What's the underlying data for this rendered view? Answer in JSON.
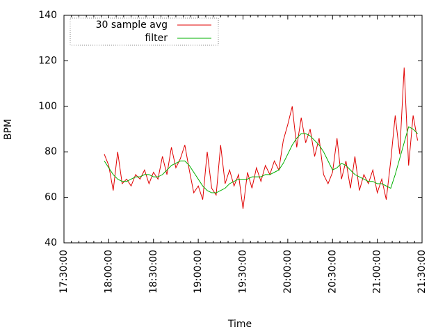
{
  "chart_data": {
    "type": "line",
    "xlabel": "Time",
    "ylabel": "BPM",
    "xlim": [
      "17:30:00",
      "21:30:00"
    ],
    "xticks": [
      "17:30:00",
      "18:00:00",
      "18:30:00",
      "19:00:00",
      "19:30:00",
      "20:00:00",
      "20:30:00",
      "21:00:00",
      "21:30:00"
    ],
    "ylim": [
      40,
      140
    ],
    "yticks": [
      40,
      60,
      80,
      100,
      120,
      140
    ],
    "legend": "top-left",
    "x": [
      "17:57:00",
      "18:00:00",
      "18:03:00",
      "18:06:00",
      "18:09:00",
      "18:12:00",
      "18:15:00",
      "18:18:00",
      "18:21:00",
      "18:24:00",
      "18:27:00",
      "18:30:00",
      "18:33:00",
      "18:36:00",
      "18:39:00",
      "18:42:00",
      "18:45:00",
      "18:48:00",
      "18:51:00",
      "18:54:00",
      "18:57:00",
      "19:00:00",
      "19:03:00",
      "19:06:00",
      "19:09:00",
      "19:12:00",
      "19:15:00",
      "19:18:00",
      "19:21:00",
      "19:24:00",
      "19:27:00",
      "19:30:00",
      "19:33:00",
      "19:36:00",
      "19:39:00",
      "19:42:00",
      "19:45:00",
      "19:48:00",
      "19:51:00",
      "19:54:00",
      "19:57:00",
      "20:00:00",
      "20:03:00",
      "20:06:00",
      "20:09:00",
      "20:12:00",
      "20:15:00",
      "20:18:00",
      "20:21:00",
      "20:24:00",
      "20:27:00",
      "20:30:00",
      "20:33:00",
      "20:36:00",
      "20:39:00",
      "20:42:00",
      "20:45:00",
      "20:48:00",
      "20:51:00",
      "20:54:00",
      "20:57:00",
      "21:00:00",
      "21:03:00",
      "21:06:00",
      "21:09:00",
      "21:12:00",
      "21:15:00",
      "21:18:00",
      "21:21:00",
      "21:24:00",
      "21:27:00"
    ],
    "series": [
      {
        "name": "30 sample avg",
        "color": "#e00000",
        "values": [
          79,
          74,
          63,
          80,
          66,
          68,
          65,
          70,
          68,
          72,
          66,
          71,
          68,
          78,
          70,
          82,
          73,
          77,
          83,
          72,
          62,
          65,
          59,
          80,
          64,
          61,
          83,
          66,
          72,
          65,
          70,
          55,
          71,
          64,
          73,
          67,
          74,
          70,
          76,
          72,
          85,
          92,
          100,
          82,
          95,
          84,
          90,
          78,
          86,
          70,
          66,
          71,
          86,
          68,
          76,
          64,
          78,
          63,
          70,
          66,
          72,
          62,
          68,
          59,
          76,
          96,
          79,
          117,
          74,
          96,
          85
        ]
      },
      {
        "name": "filter",
        "color": "#00b000",
        "values": [
          76,
          73,
          70,
          68,
          67,
          67,
          68,
          69,
          69,
          70,
          70,
          69,
          69,
          70,
          72,
          74,
          75,
          76,
          76,
          74,
          71,
          68,
          65,
          63,
          62,
          62,
          63,
          64,
          66,
          67,
          68,
          68,
          68,
          69,
          69,
          69,
          70,
          70,
          71,
          72,
          75,
          79,
          83,
          86,
          88,
          88,
          87,
          85,
          83,
          80,
          76,
          72,
          73,
          75,
          74,
          72,
          70,
          69,
          68,
          67,
          67,
          66,
          66,
          65,
          64,
          70,
          77,
          84,
          91,
          90,
          88
        ]
      }
    ]
  }
}
